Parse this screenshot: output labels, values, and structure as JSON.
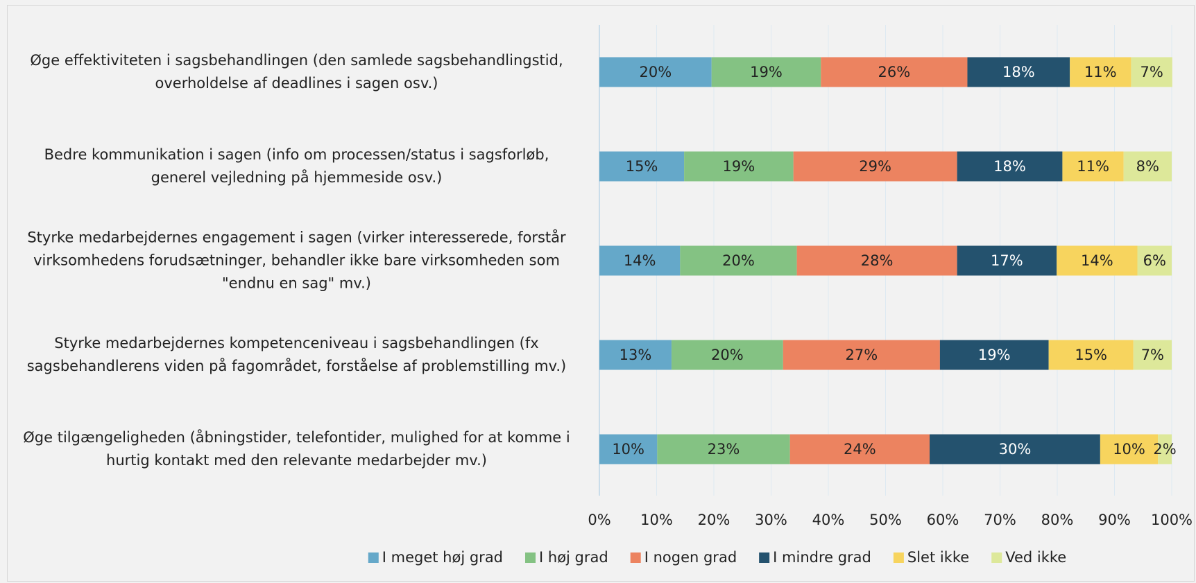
{
  "chart_data": {
    "type": "stacked_bar_horizontal",
    "categories": [
      "Øge effektiviteten i sagsbehandlingen (den samlede sagsbehandlingstid, overholdelse af deadlines i sagen osv.)",
      "Bedre kommunikation i sagen (info om processen/status i sagsforløb, generel vejledning på hjemmeside osv.)",
      "Styrke medarbejdernes engagement i sagen (virker interesserede, forstår virksomhedens forudsætninger, behandler ikke bare virksomheden som \"endnu en sag\" mv.)",
      "Styrke medarbejdernes kompetenceniveau i sagsbehandlingen (fx sagsbehandlerens viden på fagområdet, forståelse af problemstilling mv.)",
      "Øge tilgængeligheden (åbningstider, telefontider, mulighed for at komme i hurtig kontakt med den relevante medarbejder mv.)"
    ],
    "series": [
      {
        "name": "I meget høj grad",
        "color": "#65a8c9",
        "values": [
          19.6,
          14.8,
          14.1,
          12.6,
          10.1
        ],
        "value_labels": [
          "20%",
          "15%",
          "14%",
          "13%",
          "10%"
        ]
      },
      {
        "name": "I høj grad",
        "color": "#84c283",
        "values": [
          19.1,
          19.1,
          20.4,
          19.5,
          23.2
        ],
        "value_labels": [
          "19%",
          "19%",
          "20%",
          "20%",
          "23%"
        ]
      },
      {
        "name": "I nogen grad",
        "color": "#ec8360",
        "values": [
          25.6,
          28.6,
          28.0,
          27.4,
          24.4
        ],
        "value_labels": [
          "26%",
          "29%",
          "28%",
          "27%",
          "24%"
        ]
      },
      {
        "name": "I mindre grad",
        "color": "#24526e",
        "values": [
          17.9,
          18.4,
          17.4,
          19.0,
          29.8
        ],
        "value_labels": [
          "18%",
          "18%",
          "17%",
          "19%",
          "30%"
        ]
      },
      {
        "name": "Slet ikke",
        "color": "#f7d45e",
        "values": [
          10.7,
          10.7,
          14.1,
          14.8,
          10.1
        ],
        "value_labels": [
          "11%",
          "11%",
          "14%",
          "15%",
          "10%"
        ]
      },
      {
        "name": "Ved ikke",
        "color": "#dde89a",
        "values": [
          7.2,
          8.4,
          6.0,
          6.7,
          2.4
        ],
        "value_labels": [
          "7%",
          "8%",
          "6%",
          "7%",
          "2%"
        ]
      }
    ],
    "xlim": [
      0,
      100
    ],
    "xticks": [
      {
        "value": 0,
        "label": "0%"
      },
      {
        "value": 10,
        "label": "10%"
      },
      {
        "value": 20,
        "label": "20%"
      },
      {
        "value": 30,
        "label": "30%"
      },
      {
        "value": 40,
        "label": "40%"
      },
      {
        "value": 50,
        "label": "50%"
      },
      {
        "value": 60,
        "label": "60%"
      },
      {
        "value": 70,
        "label": "70%"
      },
      {
        "value": 80,
        "label": "80%"
      },
      {
        "value": 90,
        "label": "90%"
      },
      {
        "value": 100,
        "label": "100%"
      }
    ],
    "grid": true,
    "legend": "bottom"
  }
}
